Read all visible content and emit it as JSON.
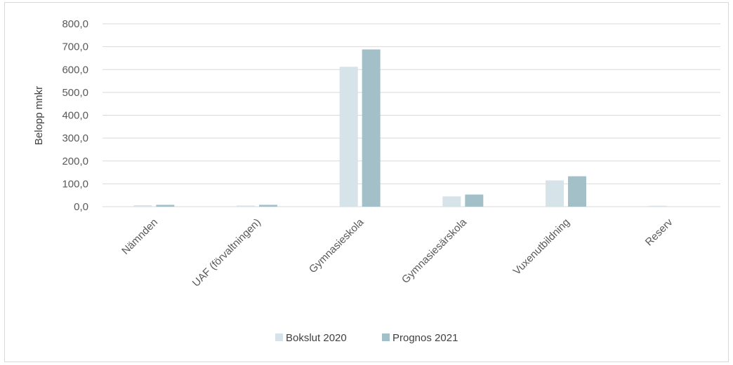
{
  "chart_data": {
    "type": "bar",
    "ylabel": "Belopp mnkr",
    "xlabel": "",
    "ylim": [
      0,
      800
    ],
    "yticks": [
      "0,0",
      "100,0",
      "200,0",
      "300,0",
      "400,0",
      "500,0",
      "600,0",
      "700,0",
      "800,0"
    ],
    "grid": true,
    "legend_position": "bottom",
    "categories": [
      "Nämnden",
      "UAF (förvaltningen)",
      "Gymnasieskola",
      "Gymnasiesärskola",
      "Vuxenutbildning",
      "Reserv"
    ],
    "series": [
      {
        "name": "Bokslut 2020",
        "color": "#d6e3e8",
        "values": [
          6,
          5,
          612,
          45,
          115,
          4
        ]
      },
      {
        "name": "Prognos 2021",
        "color": "#a3c0c8",
        "values": [
          8,
          8,
          688,
          53,
          133,
          0
        ]
      }
    ]
  }
}
